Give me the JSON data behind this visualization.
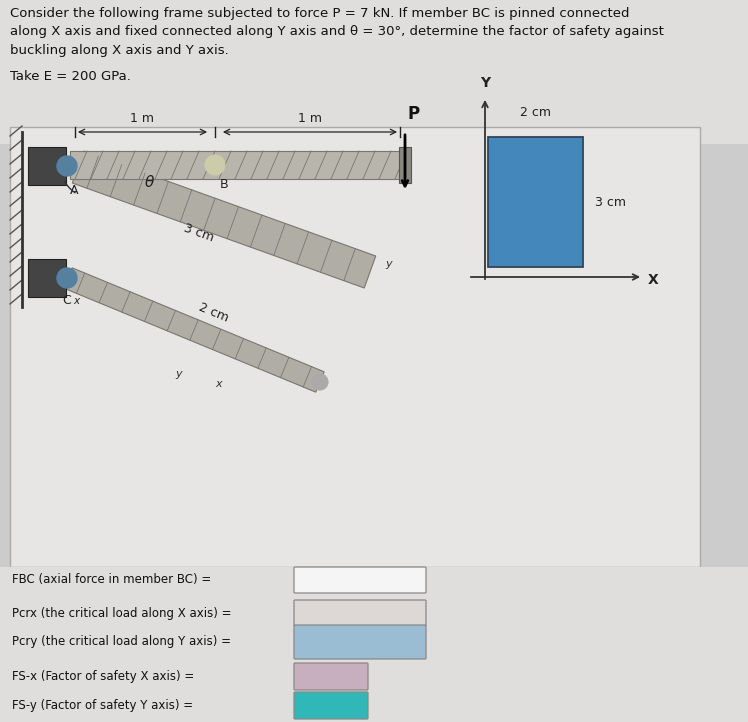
{
  "title_text": "Consider the following frame subjected to force P = 7 kN. If member BC is pinned connected\nalong X axis and fixed connected along Y axis and θ = 30°, determine the factor of safety against\nbuckling along X axis and Y axis.",
  "subtitle_text": "Take E = 200 GPa.",
  "bg_color": "#cccccc",
  "header_bg": "#e0dedd",
  "inner_bg": "#e8e6e4",
  "label_lines": [
    "FBC (axial force in member BC) =",
    "Pcrx (the critical load along X axis) =",
    "Pcry (the critical load along Y axis) =",
    "FS-x (Factor of safety X axis) =",
    "FS-y (Factor of safety Y axis) ="
  ],
  "box_colors": [
    "#f5f5f5",
    "#ddd8d5",
    "#9bbdd4",
    "#c8afc0",
    "#30b8b8"
  ],
  "cross_section_color": "#4488bb",
  "beam_color": "#b8b5ac",
  "member_color": "#b0ada5",
  "wall_color": "#555555",
  "pin_color": "#5580a0"
}
